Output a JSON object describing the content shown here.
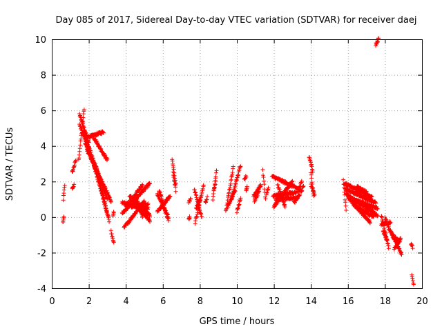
{
  "chart_data": {
    "type": "scatter",
    "title": "Day 085 of 2017, Sidereal Day-to-day VTEC variation (SDTVAR) for receiver daej",
    "xlabel": "GPS time / hours",
    "ylabel": "SDTVAR / TECUs",
    "xlim": [
      0,
      20
    ],
    "ylim": [
      -4,
      10
    ],
    "xticks": [
      "0",
      "2",
      "4",
      "6",
      "8",
      "10",
      "12",
      "14",
      "16",
      "18",
      "20"
    ],
    "yticks": [
      "-4",
      "-2",
      "0",
      "2",
      "4",
      "6",
      "8",
      "10"
    ],
    "grid": true,
    "marker": "plus",
    "color": "#ff0000",
    "series": [
      {
        "name": "SDTVAR",
        "segments": [
          {
            "x0": 0.6,
            "x1": 0.65,
            "y0": -0.3,
            "y1": 0.0
          },
          {
            "x0": 0.62,
            "x1": 0.7,
            "y0": 1.0,
            "y1": 1.8
          },
          {
            "x0": 1.1,
            "x1": 1.2,
            "y0": 1.6,
            "y1": 1.8
          },
          {
            "x0": 1.1,
            "x1": 1.3,
            "y0": 2.5,
            "y1": 3.2
          },
          {
            "x0": 1.45,
            "x1": 1.75,
            "y0": 3.2,
            "y1": 6.1
          },
          {
            "x0": 1.5,
            "x1": 2.0,
            "y0": 5.8,
            "y1": 4.2
          },
          {
            "x0": 1.5,
            "x1": 2.0,
            "y0": 5.2,
            "y1": 3.8
          },
          {
            "x0": 1.7,
            "x1": 2.6,
            "y0": 4.8,
            "y1": 2.2
          },
          {
            "x0": 1.8,
            "x1": 3.0,
            "y0": 4.2,
            "y1": 1.0
          },
          {
            "x0": 1.9,
            "x1": 3.2,
            "y0": 3.8,
            "y1": 0.9
          },
          {
            "x0": 2.0,
            "x1": 2.8,
            "y0": 4.5,
            "y1": 4.8
          },
          {
            "x0": 2.2,
            "x1": 3.0,
            "y0": 4.6,
            "y1": 3.2
          },
          {
            "x0": 2.2,
            "x1": 3.0,
            "y0": 3.2,
            "y1": 0.2
          },
          {
            "x0": 2.4,
            "x1": 3.1,
            "y0": 2.8,
            "y1": -0.2
          },
          {
            "x0": 3.2,
            "x1": 3.35,
            "y0": -0.8,
            "y1": -1.4
          },
          {
            "x0": 3.3,
            "x1": 3.35,
            "y0": 0.0,
            "y1": 0.3
          },
          {
            "x0": 3.8,
            "x1": 5.3,
            "y0": 0.2,
            "y1": 1.9
          },
          {
            "x0": 3.8,
            "x1": 5.2,
            "y0": 0.8,
            "y1": 0.5
          },
          {
            "x0": 3.9,
            "x1": 5.0,
            "y0": -0.6,
            "y1": 0.9
          },
          {
            "x0": 4.0,
            "x1": 4.9,
            "y0": 0.6,
            "y1": 1.8
          },
          {
            "x0": 4.2,
            "x1": 5.3,
            "y0": 1.2,
            "y1": 0.1
          },
          {
            "x0": 4.3,
            "x1": 5.2,
            "y0": 0.6,
            "y1": 0.7
          },
          {
            "x0": 4.5,
            "x1": 5.3,
            "y0": 0.7,
            "y1": -0.2
          },
          {
            "x0": 4.6,
            "x1": 4.9,
            "y0": 1.0,
            "y1": 0.0
          },
          {
            "x0": 5.7,
            "x1": 6.3,
            "y0": 1.3,
            "y1": 0.0
          },
          {
            "x0": 5.7,
            "x1": 6.4,
            "y0": 0.3,
            "y1": 1.2
          },
          {
            "x0": 5.8,
            "x1": 6.3,
            "y0": 1.5,
            "y1": -0.2
          },
          {
            "x0": 6.5,
            "x1": 6.7,
            "y0": 3.3,
            "y1": 1.8
          },
          {
            "x0": 6.55,
            "x1": 6.7,
            "y0": 2.5,
            "y1": 1.5
          },
          {
            "x0": 7.4,
            "x1": 7.5,
            "y0": 0.8,
            "y1": 1.0
          },
          {
            "x0": 7.4,
            "x1": 7.45,
            "y0": -0.1,
            "y1": 0.0
          },
          {
            "x0": 7.7,
            "x1": 8.1,
            "y0": 1.6,
            "y1": 0.0
          },
          {
            "x0": 7.75,
            "x1": 8.2,
            "y0": -0.3,
            "y1": 1.8
          },
          {
            "x0": 7.8,
            "x1": 8.0,
            "y0": 0.5,
            "y1": 1.0
          },
          {
            "x0": 8.3,
            "x1": 8.4,
            "y0": 0.8,
            "y1": 1.1
          },
          {
            "x0": 8.7,
            "x1": 8.9,
            "y0": 1.0,
            "y1": 2.6
          },
          {
            "x0": 8.75,
            "x1": 8.85,
            "y0": 1.5,
            "y1": 2.0
          },
          {
            "x0": 9.4,
            "x1": 9.8,
            "y0": 0.3,
            "y1": 2.8
          },
          {
            "x0": 9.5,
            "x1": 9.9,
            "y0": 0.6,
            "y1": 1.5
          },
          {
            "x0": 9.7,
            "x1": 10.2,
            "y0": 1.0,
            "y1": 2.9
          },
          {
            "x0": 10.0,
            "x1": 10.2,
            "y0": 0.3,
            "y1": 1.0
          },
          {
            "x0": 10.4,
            "x1": 10.5,
            "y0": 2.1,
            "y1": 2.3
          },
          {
            "x0": 10.5,
            "x1": 10.55,
            "y0": 1.5,
            "y1": 1.7
          },
          {
            "x0": 10.9,
            "x1": 11.3,
            "y0": 1.2,
            "y1": 1.8
          },
          {
            "x0": 10.95,
            "x1": 11.2,
            "y0": 0.9,
            "y1": 1.5
          },
          {
            "x0": 11.4,
            "x1": 11.55,
            "y0": 2.6,
            "y1": 1.0
          },
          {
            "x0": 11.6,
            "x1": 11.7,
            "y0": 1.3,
            "y1": 1.6
          },
          {
            "x0": 11.9,
            "x1": 13.5,
            "y0": 2.3,
            "y1": 1.5
          },
          {
            "x0": 11.95,
            "x1": 13.2,
            "y0": 1.2,
            "y1": 1.4
          },
          {
            "x0": 12.0,
            "x1": 13.0,
            "y0": 0.6,
            "y1": 2.0
          },
          {
            "x0": 12.1,
            "x1": 13.3,
            "y0": 1.0,
            "y1": 1.1
          },
          {
            "x0": 12.2,
            "x1": 12.6,
            "y0": 1.8,
            "y1": 0.6
          },
          {
            "x0": 13.1,
            "x1": 13.4,
            "y0": 0.8,
            "y1": 1.3
          },
          {
            "x0": 13.3,
            "x1": 13.5,
            "y0": 1.4,
            "y1": 2.0
          },
          {
            "x0": 13.5,
            "x1": 13.6,
            "y0": 1.5,
            "y1": 1.8
          },
          {
            "x0": 13.9,
            "x1": 14.1,
            "y0": 3.4,
            "y1": 2.6
          },
          {
            "x0": 14.0,
            "x1": 14.15,
            "y0": 2.5,
            "y1": 1.2
          },
          {
            "x0": 14.0,
            "x1": 14.2,
            "y0": 1.8,
            "y1": 1.3
          },
          {
            "x0": 15.75,
            "x1": 15.9,
            "y0": 2.1,
            "y1": 0.4
          },
          {
            "x0": 15.8,
            "x1": 17.3,
            "y0": 1.9,
            "y1": 1.1
          },
          {
            "x0": 15.85,
            "x1": 17.5,
            "y0": 1.6,
            "y1": 0.8
          },
          {
            "x0": 15.9,
            "x1": 17.6,
            "y0": 1.3,
            "y1": 0.1
          },
          {
            "x0": 16.0,
            "x1": 17.6,
            "y0": 1.1,
            "y1": 0.5
          },
          {
            "x0": 16.1,
            "x1": 17.2,
            "y0": 1.0,
            "y1": -0.3
          },
          {
            "x0": 16.3,
            "x1": 17.4,
            "y0": 0.7,
            "y1": 0.0
          },
          {
            "x0": 16.5,
            "x1": 17.0,
            "y0": 1.7,
            "y1": 1.4
          },
          {
            "x0": 17.5,
            "x1": 17.65,
            "y0": 9.7,
            "y1": 10.0
          },
          {
            "x0": 17.8,
            "x1": 18.2,
            "y0": 0.1,
            "y1": -1.7
          },
          {
            "x0": 17.8,
            "x1": 18.3,
            "y0": -0.4,
            "y1": -0.3
          },
          {
            "x0": 17.9,
            "x1": 18.1,
            "y0": -0.8,
            "y1": -1.3
          },
          {
            "x0": 18.0,
            "x1": 18.3,
            "y0": 0.0,
            "y1": -0.9
          },
          {
            "x0": 18.3,
            "x1": 18.9,
            "y0": -0.8,
            "y1": -2.1
          },
          {
            "x0": 18.4,
            "x1": 18.8,
            "y0": -1.0,
            "y1": -1.4
          },
          {
            "x0": 18.5,
            "x1": 18.85,
            "y0": -1.8,
            "y1": -1.2
          },
          {
            "x0": 19.4,
            "x1": 19.5,
            "y0": -1.5,
            "y1": -1.7
          },
          {
            "x0": 19.45,
            "x1": 19.55,
            "y0": -3.3,
            "y1": -3.8
          }
        ]
      }
    ]
  }
}
